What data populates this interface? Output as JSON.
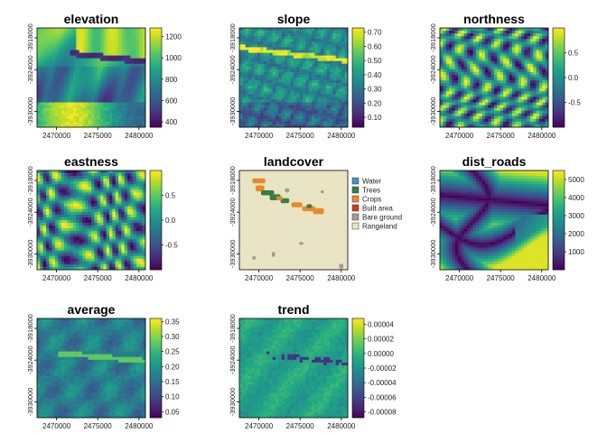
{
  "figure": {
    "x_ticks": [
      "2470000",
      "2475000",
      "2480000"
    ],
    "y_ticks": [
      "-3918000",
      "-3924000",
      "-3930000"
    ]
  },
  "chart_data": [
    {
      "type": "heatmap",
      "title": "elevation",
      "palette": "viridis",
      "colorbar_ticks": [
        "1200",
        "1000",
        "800",
        "600",
        "400"
      ],
      "colorbar_values": [
        1200,
        1000,
        800,
        600,
        400
      ],
      "range": [
        350,
        1280
      ],
      "pattern": "elevation"
    },
    {
      "type": "heatmap",
      "title": "slope",
      "palette": "viridis",
      "colorbar_ticks": [
        "0.70",
        "0.60",
        "0.50",
        "0.40",
        "0.30",
        "0.20",
        "0.10"
      ],
      "colorbar_values": [
        0.7,
        0.6,
        0.5,
        0.4,
        0.3,
        0.2,
        0.1
      ],
      "range": [
        0.03,
        0.73
      ],
      "pattern": "slope"
    },
    {
      "type": "heatmap",
      "title": "northness",
      "palette": "viridis",
      "colorbar_ticks": [
        "0.5",
        "0.0",
        "-0.5"
      ],
      "colorbar_values": [
        0.5,
        0.0,
        -0.5
      ],
      "range": [
        -1,
        1
      ],
      "pattern": "aspect"
    },
    {
      "type": "heatmap",
      "title": "eastness",
      "palette": "viridis",
      "colorbar_ticks": [
        "0.5",
        "0.0",
        "-0.5"
      ],
      "colorbar_values": [
        0.5,
        0.0,
        -0.5
      ],
      "range": [
        -1,
        1
      ],
      "pattern": "aspect2"
    },
    {
      "type": "heatmap",
      "title": "landcover",
      "palette": "categorical",
      "pattern": "landcover",
      "legend": [
        {
          "label": "Water",
          "color": "#4a90c8"
        },
        {
          "label": "Trees",
          "color": "#3a7d44"
        },
        {
          "label": "Crops",
          "color": "#e8892a"
        },
        {
          "label": "Built area",
          "color": "#d43a1a"
        },
        {
          "label": "Bare ground",
          "color": "#a39c94"
        },
        {
          "label": "Rangeland",
          "color": "#e8e4c4"
        }
      ]
    },
    {
      "type": "heatmap",
      "title": "dist_roads",
      "palette": "viridis",
      "colorbar_ticks": [
        "5000",
        "4000",
        "3000",
        "2000",
        "1000"
      ],
      "colorbar_values": [
        5000,
        4000,
        3000,
        2000,
        1000
      ],
      "range": [
        0,
        5500
      ],
      "pattern": "roads"
    },
    {
      "type": "heatmap",
      "title": "average",
      "palette": "viridis",
      "colorbar_ticks": [
        "0.35",
        "0.30",
        "0.25",
        "0.20",
        "0.15",
        "0.10",
        "0.05"
      ],
      "colorbar_values": [
        0.35,
        0.3,
        0.25,
        0.2,
        0.15,
        0.1,
        0.05
      ],
      "range": [
        0.03,
        0.36
      ],
      "pattern": "average"
    },
    {
      "type": "heatmap",
      "title": "trend",
      "palette": "viridis",
      "colorbar_ticks": [
        "0.00004",
        "0.00002",
        "0.00000",
        "-0.00002",
        "-0.00004",
        "-0.00006",
        "-0.00008"
      ],
      "colorbar_values": [
        4e-05,
        2e-05,
        0.0,
        -2e-05,
        -4e-05,
        -6e-05,
        -8e-05
      ],
      "range": [
        -8.8e-05,
        4.8e-05
      ],
      "pattern": "trend"
    }
  ]
}
